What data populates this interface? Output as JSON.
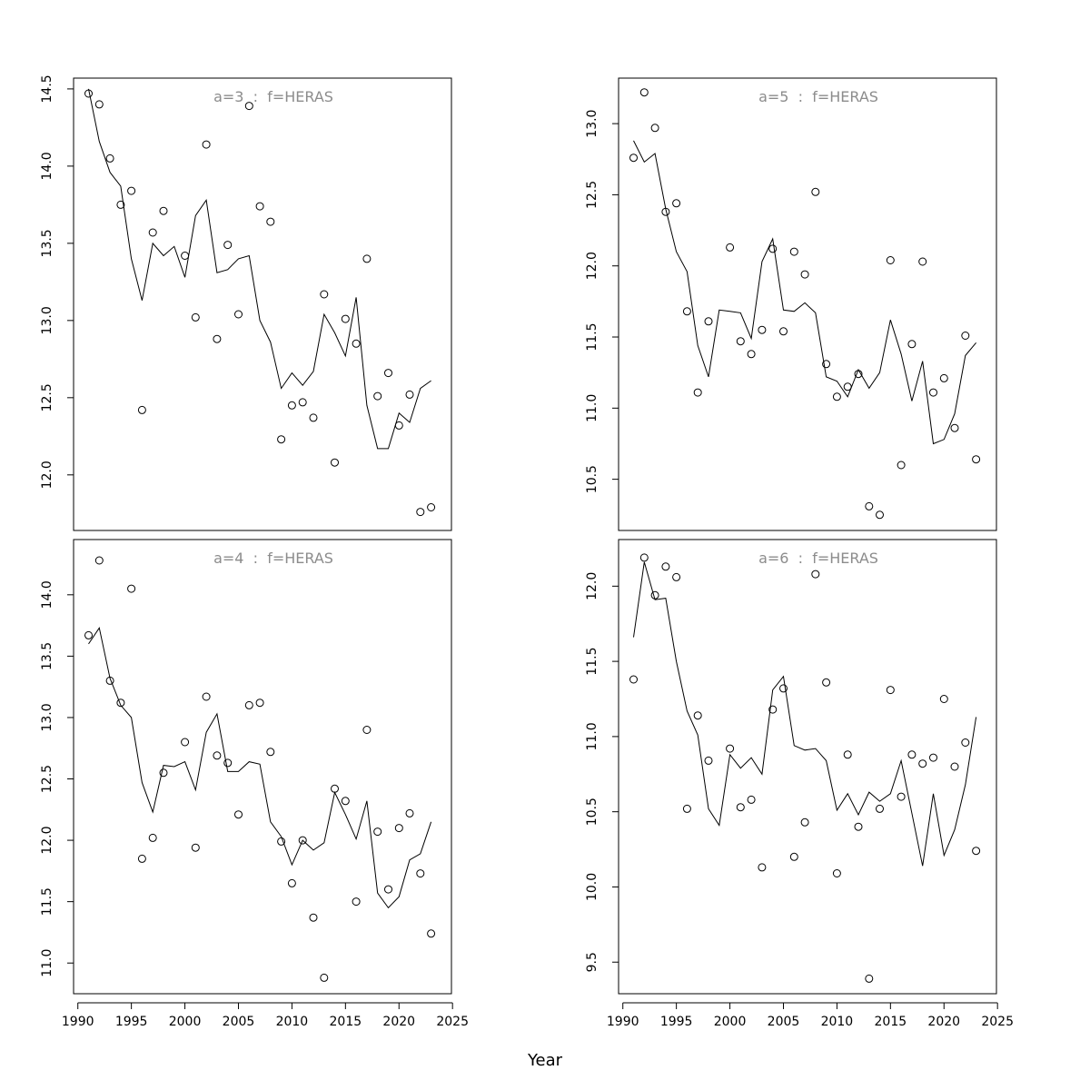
{
  "x_axis_title": "Year",
  "chart_data": [
    {
      "type": "scatter",
      "title": "a=3  :  f=HERAS",
      "xlabel": "Year",
      "ylabel": "",
      "xlim": [
        1989.6,
        2024.9
      ],
      "ylim": [
        11.64,
        14.57
      ],
      "xticks": [
        1990,
        1995,
        2000,
        2005,
        2010,
        2015,
        2020,
        2025
      ],
      "yticks": [
        12.0,
        12.5,
        13.0,
        13.5,
        14.0,
        14.5
      ],
      "grid": false,
      "x": [
        1991,
        1992,
        1993,
        1994,
        1995,
        1996,
        1997,
        1998,
        1999,
        2000,
        2001,
        2002,
        2003,
        2004,
        2005,
        2006,
        2007,
        2008,
        2009,
        2010,
        2011,
        2012,
        2013,
        2014,
        2015,
        2016,
        2017,
        2018,
        2019,
        2020,
        2021,
        2022,
        2023
      ],
      "series": [
        {
          "kind": "points",
          "values": [
            14.47,
            14.4,
            14.05,
            13.75,
            13.84,
            12.42,
            13.57,
            13.71,
            null,
            13.42,
            13.02,
            14.14,
            12.88,
            13.49,
            13.04,
            14.39,
            13.74,
            13.64,
            12.23,
            12.45,
            12.47,
            12.37,
            13.17,
            12.08,
            13.01,
            12.85,
            13.4,
            12.51,
            12.66,
            12.32,
            12.52,
            11.76,
            11.79
          ]
        },
        {
          "kind": "line",
          "values": [
            14.5,
            14.16,
            13.96,
            13.87,
            13.4,
            13.13,
            13.5,
            13.42,
            13.48,
            13.28,
            13.68,
            13.78,
            13.31,
            13.33,
            13.4,
            13.42,
            13.0,
            12.86,
            12.56,
            12.66,
            12.58,
            12.67,
            13.04,
            12.92,
            12.77,
            13.15,
            12.45,
            12.17,
            12.17,
            12.4,
            12.34,
            12.56,
            12.61
          ]
        }
      ]
    },
    {
      "type": "scatter",
      "title": "a=5  :  f=HERAS",
      "xlabel": "Year",
      "ylabel": "",
      "xlim": [
        1989.6,
        2024.9
      ],
      "ylim": [
        10.14,
        13.32
      ],
      "xticks": [
        1990,
        1995,
        2000,
        2005,
        2010,
        2015,
        2020,
        2025
      ],
      "yticks": [
        10.5,
        11.0,
        11.5,
        12.0,
        12.5,
        13.0
      ],
      "grid": false,
      "x": [
        1991,
        1992,
        1993,
        1994,
        1995,
        1996,
        1997,
        1998,
        1999,
        2000,
        2001,
        2002,
        2003,
        2004,
        2005,
        2006,
        2007,
        2008,
        2009,
        2010,
        2011,
        2012,
        2013,
        2014,
        2015,
        2016,
        2017,
        2018,
        2019,
        2020,
        2021,
        2022,
        2023
      ],
      "series": [
        {
          "kind": "points",
          "values": [
            12.76,
            13.22,
            12.97,
            12.38,
            12.44,
            11.68,
            11.11,
            11.61,
            null,
            12.13,
            11.47,
            11.38,
            11.55,
            12.12,
            11.54,
            12.1,
            11.94,
            12.52,
            11.31,
            11.08,
            11.15,
            11.24,
            10.31,
            10.25,
            12.04,
            10.6,
            11.45,
            12.03,
            11.11,
            11.21,
            10.86,
            11.51,
            10.64
          ]
        },
        {
          "kind": "line",
          "values": [
            12.88,
            12.73,
            12.79,
            12.4,
            12.1,
            11.96,
            11.44,
            11.22,
            11.69,
            11.68,
            11.67,
            11.49,
            12.03,
            12.19,
            11.69,
            11.68,
            11.74,
            11.67,
            11.22,
            11.19,
            11.08,
            11.27,
            11.14,
            11.25,
            11.62,
            11.38,
            11.05,
            11.33,
            10.75,
            10.78,
            10.96,
            11.37,
            11.46
          ]
        }
      ]
    },
    {
      "type": "scatter",
      "title": "a=4  :  f=HERAS",
      "xlabel": "Year",
      "ylabel": "",
      "xlim": [
        1989.6,
        2024.9
      ],
      "ylim": [
        10.75,
        14.45
      ],
      "xticks": [
        1990,
        1995,
        2000,
        2005,
        2010,
        2015,
        2020,
        2025
      ],
      "yticks": [
        11.0,
        11.5,
        12.0,
        12.5,
        13.0,
        13.5,
        14.0
      ],
      "grid": false,
      "x": [
        1991,
        1992,
        1993,
        1994,
        1995,
        1996,
        1997,
        1998,
        1999,
        2000,
        2001,
        2002,
        2003,
        2004,
        2005,
        2006,
        2007,
        2008,
        2009,
        2010,
        2011,
        2012,
        2013,
        2014,
        2015,
        2016,
        2017,
        2018,
        2019,
        2020,
        2021,
        2022,
        2023
      ],
      "series": [
        {
          "kind": "points",
          "values": [
            13.67,
            14.28,
            13.3,
            13.12,
            14.05,
            11.85,
            12.02,
            12.55,
            null,
            12.8,
            11.94,
            13.17,
            12.69,
            12.63,
            12.21,
            13.1,
            13.12,
            12.72,
            11.99,
            11.65,
            12.0,
            11.37,
            10.88,
            12.42,
            12.32,
            11.5,
            12.9,
            12.07,
            11.6,
            12.1,
            12.22,
            11.73,
            11.24
          ]
        },
        {
          "kind": "line",
          "values": [
            13.6,
            13.73,
            13.32,
            13.1,
            13.0,
            12.47,
            12.23,
            12.61,
            12.6,
            12.64,
            12.41,
            12.88,
            13.03,
            12.56,
            12.56,
            12.64,
            12.62,
            12.15,
            12.03,
            11.8,
            12.0,
            11.92,
            11.98,
            12.39,
            12.21,
            12.01,
            12.32,
            11.57,
            11.45,
            11.54,
            11.84,
            11.89,
            12.15
          ]
        }
      ]
    },
    {
      "type": "scatter",
      "title": "a=6  :  f=HERAS",
      "xlabel": "Year",
      "ylabel": "",
      "xlim": [
        1989.6,
        2024.9
      ],
      "ylim": [
        9.29,
        12.31
      ],
      "xticks": [
        1990,
        1995,
        2000,
        2005,
        2010,
        2015,
        2020,
        2025
      ],
      "yticks": [
        9.5,
        10.0,
        10.5,
        11.0,
        11.5,
        12.0
      ],
      "grid": false,
      "x": [
        1991,
        1992,
        1993,
        1994,
        1995,
        1996,
        1997,
        1998,
        1999,
        2000,
        2001,
        2002,
        2003,
        2004,
        2005,
        2006,
        2007,
        2008,
        2009,
        2010,
        2011,
        2012,
        2013,
        2014,
        2015,
        2016,
        2017,
        2018,
        2019,
        2020,
        2021,
        2022,
        2023
      ],
      "series": [
        {
          "kind": "points",
          "values": [
            11.38,
            12.19,
            11.94,
            12.13,
            12.06,
            10.52,
            11.14,
            10.84,
            null,
            10.92,
            10.53,
            10.58,
            10.13,
            11.18,
            11.32,
            10.2,
            10.43,
            12.08,
            11.36,
            10.09,
            10.88,
            10.4,
            9.39,
            10.52,
            11.31,
            10.6,
            10.88,
            10.82,
            10.86,
            11.25,
            10.8,
            10.96,
            10.24
          ]
        },
        {
          "kind": "line",
          "values": [
            11.66,
            12.16,
            11.91,
            11.92,
            11.5,
            11.17,
            11.01,
            10.52,
            10.41,
            10.88,
            10.79,
            10.86,
            10.75,
            11.31,
            11.4,
            10.94,
            10.91,
            10.92,
            10.84,
            10.51,
            10.62,
            10.48,
            10.63,
            10.57,
            10.62,
            10.84,
            10.49,
            10.14,
            10.62,
            10.21,
            10.38,
            10.68,
            11.13
          ]
        }
      ]
    }
  ]
}
